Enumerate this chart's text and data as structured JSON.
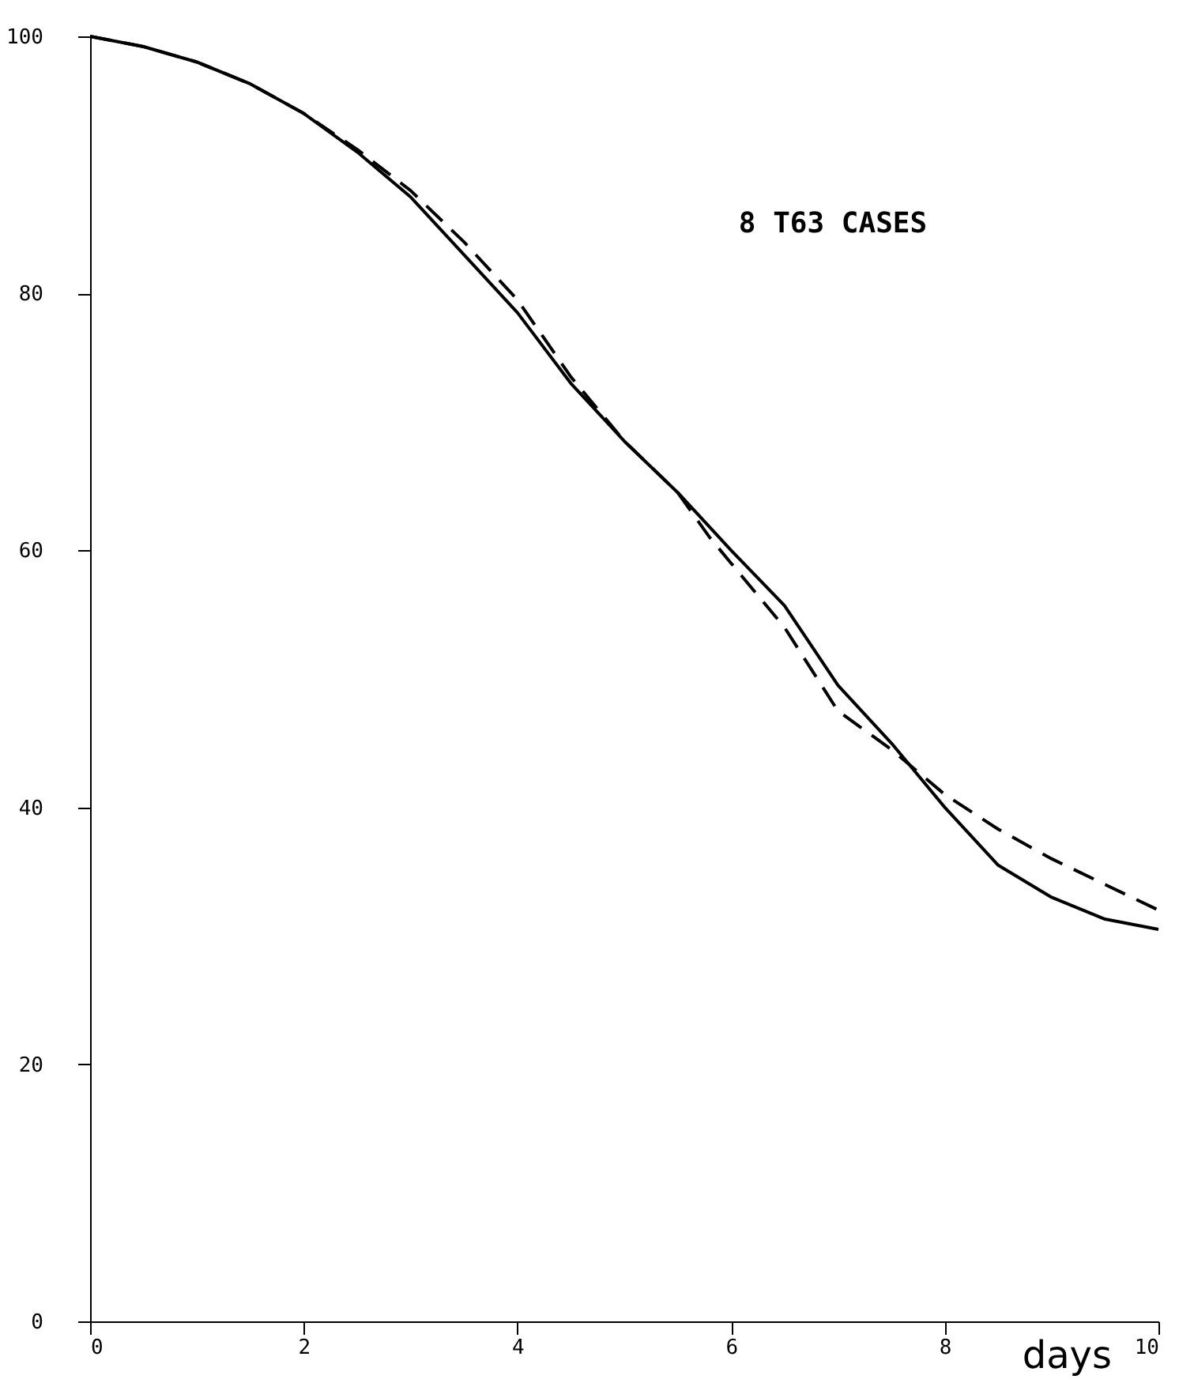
{
  "chart_data": {
    "type": "line",
    "annotations": [
      "8 T63 CASES"
    ],
    "xlabel": "days",
    "xlim": [
      0,
      10
    ],
    "xticks": [
      0,
      2,
      4,
      6,
      8,
      10
    ],
    "ylim": [
      0,
      100
    ],
    "yticks": [
      0,
      20,
      40,
      60,
      80,
      100
    ],
    "grid": false,
    "marker": "none",
    "series": [
      {
        "color": "#000000",
        "line_style": "solid",
        "x": [
          0,
          0.5,
          1,
          1.5,
          2,
          2.5,
          3,
          3.5,
          4,
          4.5,
          5,
          5.5,
          6,
          6.5,
          7,
          7.5,
          8,
          8.5,
          9,
          9.5,
          10
        ],
        "values": [
          100,
          99.2,
          98,
          96.3,
          94,
          91,
          87.5,
          83,
          78.5,
          73,
          68.5,
          64.5,
          60,
          55.7,
          49.5,
          45,
          40,
          35.5,
          33,
          31.3,
          30.5
        ]
      },
      {
        "color": "#000000",
        "line_style": "dashed",
        "x": [
          0,
          0.5,
          1,
          1.5,
          2,
          2.5,
          3,
          3.5,
          4,
          4.5,
          5,
          5.5,
          5.8,
          6,
          6.5,
          7,
          7.5,
          8,
          8.5,
          9,
          9.5,
          10
        ],
        "values": [
          100,
          99.2,
          98,
          96.3,
          94,
          91.2,
          88,
          84,
          79.5,
          73.5,
          68.5,
          64.5,
          61,
          59,
          54,
          47.5,
          44.5,
          41,
          38.3,
          36,
          34,
          32
        ]
      }
    ]
  }
}
